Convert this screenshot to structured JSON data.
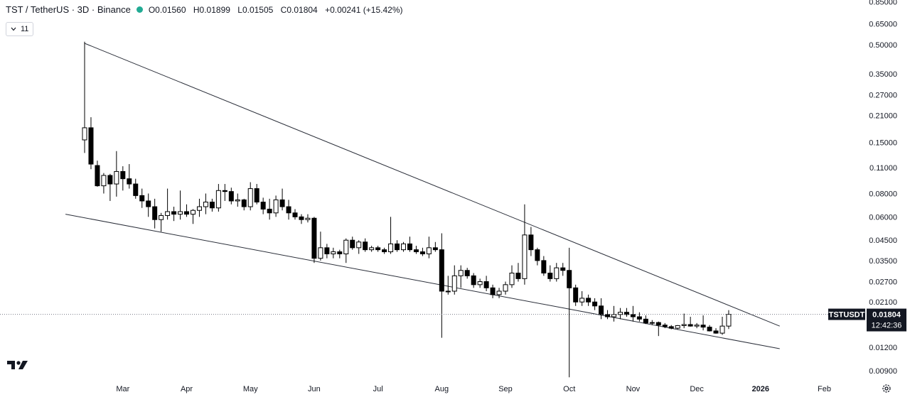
{
  "header": {
    "symbol": "TST / TetherUS · 3D · Binance",
    "open": "O0.01560",
    "high": "H0.01899",
    "low": "L0.01505",
    "close": "C0.01804",
    "change": "+0.00241 (+15.42%)",
    "indicator_count": "11",
    "status_color": "#22ab94"
  },
  "price_tag": {
    "symbol": "TSTUSDT",
    "price": "0.01804",
    "countdown": "12:42:36"
  },
  "icons": {
    "logo": "tradingview-logo-icon",
    "settings": "gear-icon",
    "chevron": "chevron-down-icon"
  },
  "chart_data": {
    "type": "candlestick",
    "y_scale": "log",
    "ylim": [
      0.0081,
      0.87
    ],
    "y_ticks": [
      "0.85000",
      "0.65000",
      "0.50000",
      "0.35000",
      "0.27000",
      "0.21000",
      "0.15000",
      "0.11000",
      "0.08000",
      "0.06000",
      "0.04500",
      "0.03500",
      "0.02700",
      "0.02100",
      "0.01200",
      "0.00900"
    ],
    "y_tick_values": [
      0.85,
      0.65,
      0.5,
      0.35,
      0.27,
      0.21,
      0.15,
      0.11,
      0.08,
      0.06,
      0.045,
      0.035,
      0.027,
      0.021,
      0.012,
      0.009
    ],
    "x_ticks": [
      "Mar",
      "Apr",
      "May",
      "Jun",
      "Jul",
      "Aug",
      "Sep",
      "Oct",
      "Nov",
      "Dec",
      "2026",
      "Feb"
    ],
    "x_tick_index": [
      6,
      16,
      26,
      36,
      46,
      56,
      66,
      76,
      86,
      96,
      106,
      116
    ],
    "candles": [
      [
        0.155,
        0.52,
        0.132,
        0.18
      ],
      [
        0.18,
        0.205,
        0.108,
        0.115
      ],
      [
        0.113,
        0.12,
        0.087,
        0.088
      ],
      [
        0.088,
        0.103,
        0.08,
        0.1
      ],
      [
        0.1,
        0.102,
        0.073,
        0.09
      ],
      [
        0.09,
        0.135,
        0.077,
        0.105
      ],
      [
        0.105,
        0.112,
        0.083,
        0.096
      ],
      [
        0.096,
        0.115,
        0.085,
        0.09
      ],
      [
        0.09,
        0.096,
        0.075,
        0.078
      ],
      [
        0.078,
        0.085,
        0.067,
        0.073
      ],
      [
        0.073,
        0.08,
        0.06,
        0.068
      ],
      [
        0.068,
        0.075,
        0.052,
        0.058
      ],
      [
        0.058,
        0.063,
        0.05,
        0.061
      ],
      [
        0.061,
        0.085,
        0.058,
        0.064
      ],
      [
        0.064,
        0.068,
        0.057,
        0.062
      ],
      [
        0.062,
        0.083,
        0.058,
        0.064
      ],
      [
        0.064,
        0.07,
        0.06,
        0.062
      ],
      [
        0.062,
        0.066,
        0.055,
        0.065
      ],
      [
        0.065,
        0.075,
        0.06,
        0.068
      ],
      [
        0.068,
        0.08,
        0.062,
        0.072
      ],
      [
        0.072,
        0.075,
        0.064,
        0.067
      ],
      [
        0.067,
        0.09,
        0.064,
        0.083
      ],
      [
        0.083,
        0.09,
        0.073,
        0.082
      ],
      [
        0.082,
        0.086,
        0.07,
        0.073
      ],
      [
        0.073,
        0.08,
        0.068,
        0.074
      ],
      [
        0.074,
        0.075,
        0.065,
        0.068
      ],
      [
        0.068,
        0.092,
        0.065,
        0.085
      ],
      [
        0.085,
        0.09,
        0.07,
        0.072
      ],
      [
        0.072,
        0.076,
        0.062,
        0.066
      ],
      [
        0.066,
        0.075,
        0.058,
        0.063
      ],
      [
        0.063,
        0.078,
        0.06,
        0.074
      ],
      [
        0.074,
        0.085,
        0.065,
        0.068
      ],
      [
        0.068,
        0.074,
        0.058,
        0.063
      ],
      [
        0.063,
        0.066,
        0.058,
        0.06
      ],
      [
        0.06,
        0.062,
        0.055,
        0.058
      ],
      [
        0.058,
        0.062,
        0.056,
        0.059
      ],
      [
        0.059,
        0.06,
        0.034,
        0.036
      ],
      [
        0.036,
        0.05,
        0.035,
        0.041
      ],
      [
        0.041,
        0.043,
        0.036,
        0.038
      ],
      [
        0.038,
        0.041,
        0.036,
        0.039
      ],
      [
        0.039,
        0.04,
        0.036,
        0.038
      ],
      [
        0.038,
        0.046,
        0.034,
        0.045
      ],
      [
        0.045,
        0.047,
        0.04,
        0.041
      ],
      [
        0.041,
        0.045,
        0.038,
        0.044
      ],
      [
        0.044,
        0.046,
        0.039,
        0.04
      ],
      [
        0.04,
        0.042,
        0.039,
        0.041
      ],
      [
        0.041,
        0.042,
        0.039,
        0.04
      ],
      [
        0.04,
        0.041,
        0.038,
        0.039
      ],
      [
        0.039,
        0.06,
        0.038,
        0.043
      ],
      [
        0.043,
        0.045,
        0.039,
        0.04
      ],
      [
        0.04,
        0.044,
        0.039,
        0.043
      ],
      [
        0.043,
        0.047,
        0.039,
        0.04
      ],
      [
        0.04,
        0.042,
        0.038,
        0.039
      ],
      [
        0.039,
        0.041,
        0.037,
        0.038
      ],
      [
        0.038,
        0.047,
        0.036,
        0.041
      ],
      [
        0.041,
        0.044,
        0.039,
        0.04
      ],
      [
        0.04,
        0.049,
        0.0135,
        0.024
      ],
      [
        0.024,
        0.029,
        0.023,
        0.024
      ],
      [
        0.024,
        0.033,
        0.023,
        0.029
      ],
      [
        0.029,
        0.033,
        0.025,
        0.031
      ],
      [
        0.031,
        0.032,
        0.028,
        0.029
      ],
      [
        0.029,
        0.03,
        0.025,
        0.026
      ],
      [
        0.026,
        0.028,
        0.025,
        0.027
      ],
      [
        0.027,
        0.029,
        0.024,
        0.025
      ],
      [
        0.025,
        0.026,
        0.022,
        0.023
      ],
      [
        0.023,
        0.025,
        0.022,
        0.024
      ],
      [
        0.024,
        0.027,
        0.023,
        0.026
      ],
      [
        0.026,
        0.033,
        0.025,
        0.03
      ],
      [
        0.03,
        0.034,
        0.027,
        0.028
      ],
      [
        0.028,
        0.07,
        0.026,
        0.048
      ],
      [
        0.048,
        0.053,
        0.037,
        0.04
      ],
      [
        0.04,
        0.041,
        0.033,
        0.035
      ],
      [
        0.035,
        0.037,
        0.029,
        0.03
      ],
      [
        0.03,
        0.033,
        0.027,
        0.028
      ],
      [
        0.028,
        0.034,
        0.027,
        0.032
      ],
      [
        0.032,
        0.034,
        0.029,
        0.031
      ],
      [
        0.031,
        0.041,
        0.0083,
        0.025
      ],
      [
        0.025,
        0.026,
        0.02,
        0.021
      ],
      [
        0.021,
        0.024,
        0.02,
        0.022
      ],
      [
        0.022,
        0.023,
        0.02,
        0.021
      ],
      [
        0.021,
        0.022,
        0.019,
        0.02
      ],
      [
        0.02,
        0.022,
        0.017,
        0.018
      ],
      [
        0.018,
        0.019,
        0.017,
        0.0175
      ],
      [
        0.0175,
        0.02,
        0.0165,
        0.018
      ],
      [
        0.018,
        0.0195,
        0.017,
        0.0185
      ],
      [
        0.0185,
        0.0195,
        0.0175,
        0.018
      ],
      [
        0.018,
        0.02,
        0.0165,
        0.0175
      ],
      [
        0.0175,
        0.0185,
        0.0165,
        0.017
      ],
      [
        0.017,
        0.0178,
        0.016,
        0.0162
      ],
      [
        0.0162,
        0.0168,
        0.0158,
        0.0163
      ],
      [
        0.0163,
        0.0165,
        0.0138,
        0.0158
      ],
      [
        0.0158,
        0.0162,
        0.0152,
        0.0155
      ],
      [
        0.0155,
        0.0158,
        0.015,
        0.0152
      ],
      [
        0.0152,
        0.0158,
        0.015,
        0.0157
      ],
      [
        0.0157,
        0.0182,
        0.0152,
        0.0159
      ],
      [
        0.0159,
        0.0175,
        0.0155,
        0.0156
      ],
      [
        0.0156,
        0.0162,
        0.0152,
        0.0158
      ],
      [
        0.0158,
        0.0178,
        0.0148,
        0.0154
      ],
      [
        0.0154,
        0.0158,
        0.0146,
        0.0147
      ],
      [
        0.0147,
        0.0152,
        0.0142,
        0.0143
      ],
      [
        0.0143,
        0.0175,
        0.014,
        0.0156
      ],
      [
        0.0156,
        0.01899,
        0.01505,
        0.01804
      ]
    ],
    "trendlines": [
      {
        "from": [
          0,
          0.51
        ],
        "to": [
          109,
          0.0156
        ]
      },
      {
        "from": [
          -3,
          0.062
        ],
        "to": [
          109,
          0.0118
        ]
      }
    ],
    "last_price": 0.01804,
    "grid": false,
    "up_color": "#ffffff",
    "down_color": "#000000"
  }
}
